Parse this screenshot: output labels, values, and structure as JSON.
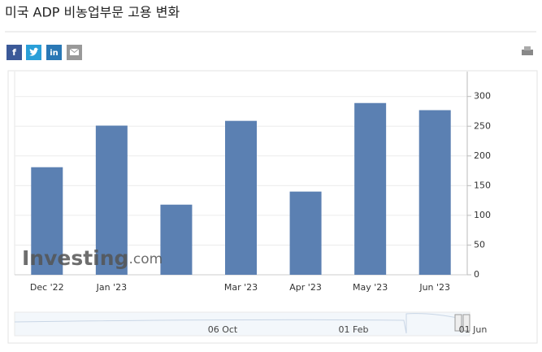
{
  "header": {
    "title": "미국 ADP 비농업부문 고용 변화"
  },
  "share_buttons": {
    "facebook": "f",
    "linkedin": "in"
  },
  "chart_data": {
    "type": "bar",
    "categories": [
      "Dec '22",
      "Jan '23",
      null,
      "Mar '23",
      "Apr '23",
      "May '23",
      "Jun '23"
    ],
    "values": [
      181,
      251,
      118,
      259,
      140,
      289,
      277
    ],
    "color": "#5b80b2",
    "ylim": [
      0,
      342
    ],
    "yticks": [
      0,
      50,
      100,
      150,
      200,
      250,
      300
    ],
    "y_axis_side": "right",
    "grid": true,
    "watermark": "Investing",
    "watermark_suffix": ".com",
    "navigator_labels": [
      "06 Oct",
      "01 Feb",
      "01 Jun"
    ]
  }
}
